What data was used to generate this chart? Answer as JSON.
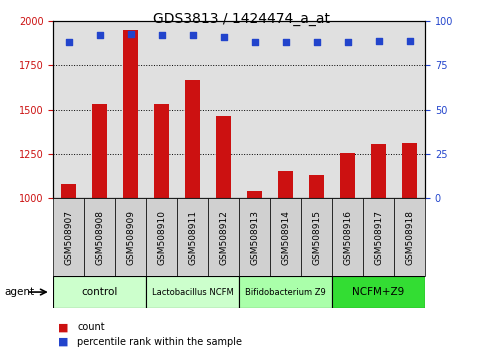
{
  "title": "GDS3813 / 1424474_a_at",
  "samples": [
    "GSM508907",
    "GSM508908",
    "GSM508909",
    "GSM508910",
    "GSM508911",
    "GSM508912",
    "GSM508913",
    "GSM508914",
    "GSM508915",
    "GSM508916",
    "GSM508917",
    "GSM508918"
  ],
  "counts": [
    1080,
    1530,
    1950,
    1530,
    1670,
    1465,
    1040,
    1155,
    1130,
    1255,
    1305,
    1310
  ],
  "percentile_ranks": [
    88,
    92,
    93,
    92,
    92,
    91,
    88,
    88,
    88,
    88,
    89,
    89
  ],
  "bar_color": "#cc1111",
  "dot_color": "#2244cc",
  "ylim_left": [
    1000,
    2000
  ],
  "ylim_right": [
    0,
    100
  ],
  "yticks_left": [
    1000,
    1250,
    1500,
    1750,
    2000
  ],
  "yticks_right": [
    0,
    25,
    50,
    75,
    100
  ],
  "groups": [
    {
      "label": "control",
      "start": 0,
      "end": 3,
      "color": "#ccffcc"
    },
    {
      "label": "Lactobacillus NCFM",
      "start": 3,
      "end": 6,
      "color": "#ccffcc"
    },
    {
      "label": "Bifidobacterium Z9",
      "start": 6,
      "end": 9,
      "color": "#aaffaa"
    },
    {
      "label": "NCFM+Z9",
      "start": 9,
      "end": 12,
      "color": "#33dd33"
    }
  ],
  "agent_label": "agent",
  "bg_color": "#ffffff",
  "plot_bg_color": "#e0e0e0",
  "sample_bg_color": "#d0d0d0",
  "legend_items": [
    {
      "label": "count",
      "color": "#cc1111"
    },
    {
      "label": "percentile rank within the sample",
      "color": "#2244cc"
    }
  ]
}
